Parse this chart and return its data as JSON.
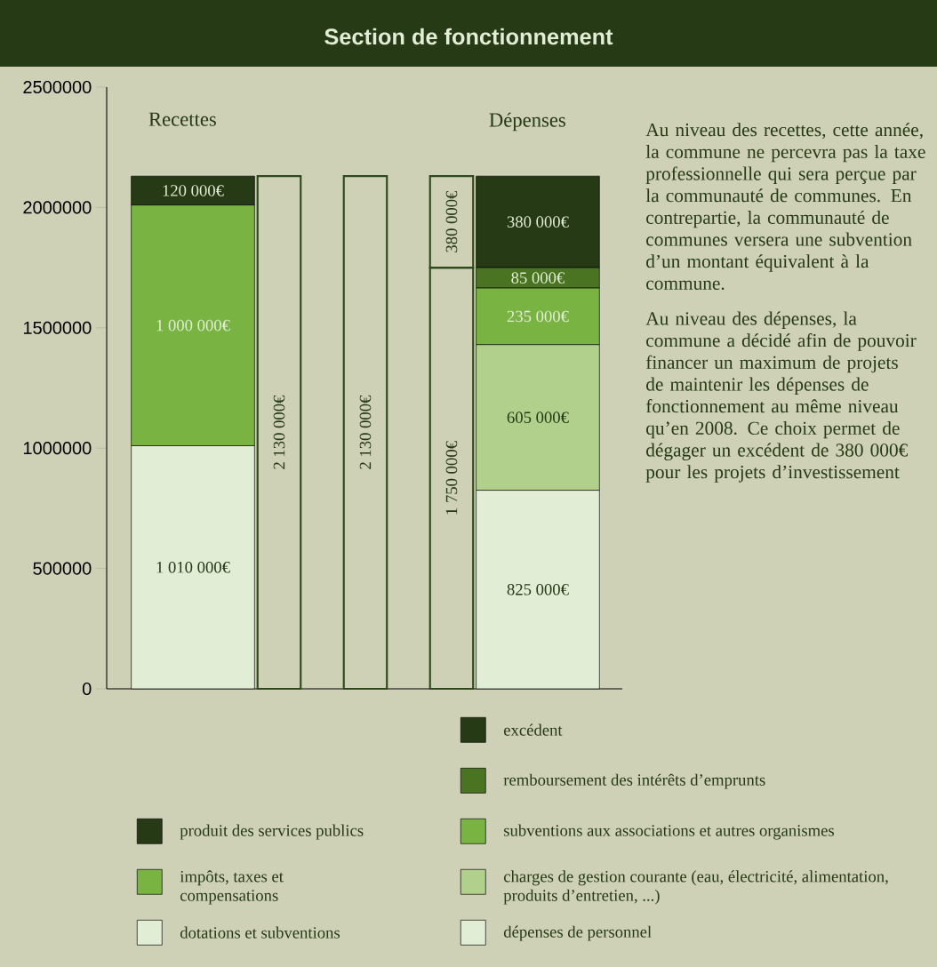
{
  "chart_data": {
    "type": "bar",
    "title": "Section de fonctionnement",
    "categories": [
      "Recettes",
      null,
      null,
      null,
      "Dépenses"
    ],
    "stacked": true,
    "ylim": [
      0,
      2500000
    ],
    "yticks": [
      0,
      500000,
      1000000,
      1500000,
      2000000,
      2500000
    ],
    "legend": "bottom",
    "series": [
      {
        "name": "dotations et subventions",
        "color": "#e2edd5",
        "values": [
          1010000,
          null,
          null,
          null,
          null
        ],
        "value_labels": [
          "1 010 000€",
          null,
          null,
          null,
          null
        ]
      },
      {
        "name": "impôts, taxes et compensations",
        "color": "#79b443",
        "values": [
          1000000,
          null,
          null,
          null,
          null
        ],
        "value_labels": [
          "1 000 000€",
          null,
          null,
          null,
          null
        ]
      },
      {
        "name": "produit des services publics",
        "color": "#263a16",
        "values": [
          120000,
          null,
          null,
          null,
          null
        ],
        "value_labels": [
          "120 000€",
          null,
          null,
          null,
          null
        ]
      },
      {
        "name": "dépenses de personnel",
        "color": "#e2edd5",
        "values": [
          null,
          null,
          null,
          null,
          825000
        ],
        "value_labels": [
          null,
          null,
          null,
          null,
          "825 000€"
        ]
      },
      {
        "name": "charges de gestion courante (eau, électricité, alimentation, produits d’entretien, ...)",
        "color": "#b1d08b",
        "values": [
          null,
          null,
          null,
          null,
          605000
        ],
        "value_labels": [
          null,
          null,
          null,
          null,
          "605 000€"
        ]
      },
      {
        "name": "subventions aux associations et autres organismes",
        "color": "#79b443",
        "values": [
          null,
          null,
          null,
          null,
          235000
        ],
        "value_labels": [
          null,
          null,
          null,
          null,
          "235 000€"
        ]
      },
      {
        "name": "remboursement des intérêts d’emprunts",
        "color": "#4b7422",
        "values": [
          null,
          null,
          null,
          null,
          85000
        ],
        "value_labels": [
          null,
          null,
          null,
          null,
          "85 000€"
        ]
      },
      {
        "name": "excédent",
        "color": "#263a16",
        "values": [
          null,
          null,
          null,
          null,
          380000
        ],
        "value_labels": [
          null,
          null,
          null,
          null,
          "380 000€"
        ]
      },
      {
        "color": "#cfd1b7",
        "values": [
          null,
          2130000,
          2130000,
          1750000,
          null
        ],
        "value_labels": [
          null,
          "2 130 000€",
          "2 130 000€",
          "1 750 000€",
          null
        ]
      },
      {
        "color": "#cfd1b7",
        "values": [
          null,
          null,
          null,
          380000,
          null
        ],
        "value_labels": [
          null,
          null,
          null,
          "380 000€",
          null
        ]
      }
    ],
    "annotations": [
      "Au niveau des recettes, cette année, la commune ne percevra pas la taxe professionnelle qui sera perçue par la communauté de communes. En contrepartie, la communauté de communes versera une subvention d’un montant équivalent à la commune.",
      "Au niveau des dépenses, la commune a décidé afin de pouvoir financer un maximum de projets de maintenir les dépenses de fonctionnement au même niveau qu’en 2008. Ce choix permet de dégager un excédent de 380 000€ pour les projets d’investissement"
    ]
  }
}
